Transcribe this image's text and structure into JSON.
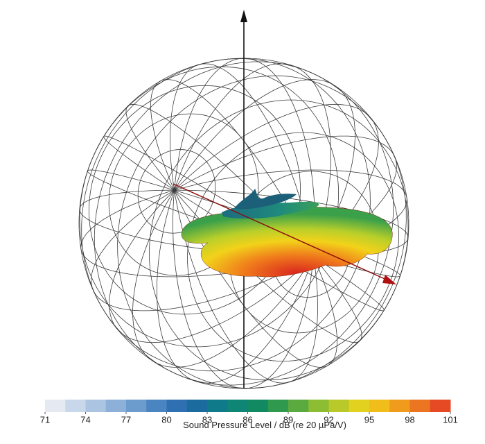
{
  "chart_data": {
    "type": "directivity-balloon",
    "colorbar": {
      "label": "Sound Pressure Level / dB (re 20 µPa/V)",
      "lim": [
        71,
        101
      ],
      "ticks": [
        71,
        74,
        77,
        80,
        83,
        86,
        89,
        92,
        95,
        98,
        101
      ],
      "colors": [
        "#e4e9f2",
        "#c9d7ea",
        "#aac4e2",
        "#8cb0d8",
        "#6c9bcd",
        "#4b85c1",
        "#2f70b2",
        "#1b6b9f",
        "#0f7a8a",
        "#0e8575",
        "#128a61",
        "#2f9a4e",
        "#5aaa40",
        "#8cbd33",
        "#bac92a",
        "#e2d21f",
        "#f1bd1a",
        "#f09b1c",
        "#ec7521",
        "#e54a25"
      ]
    }
  }
}
